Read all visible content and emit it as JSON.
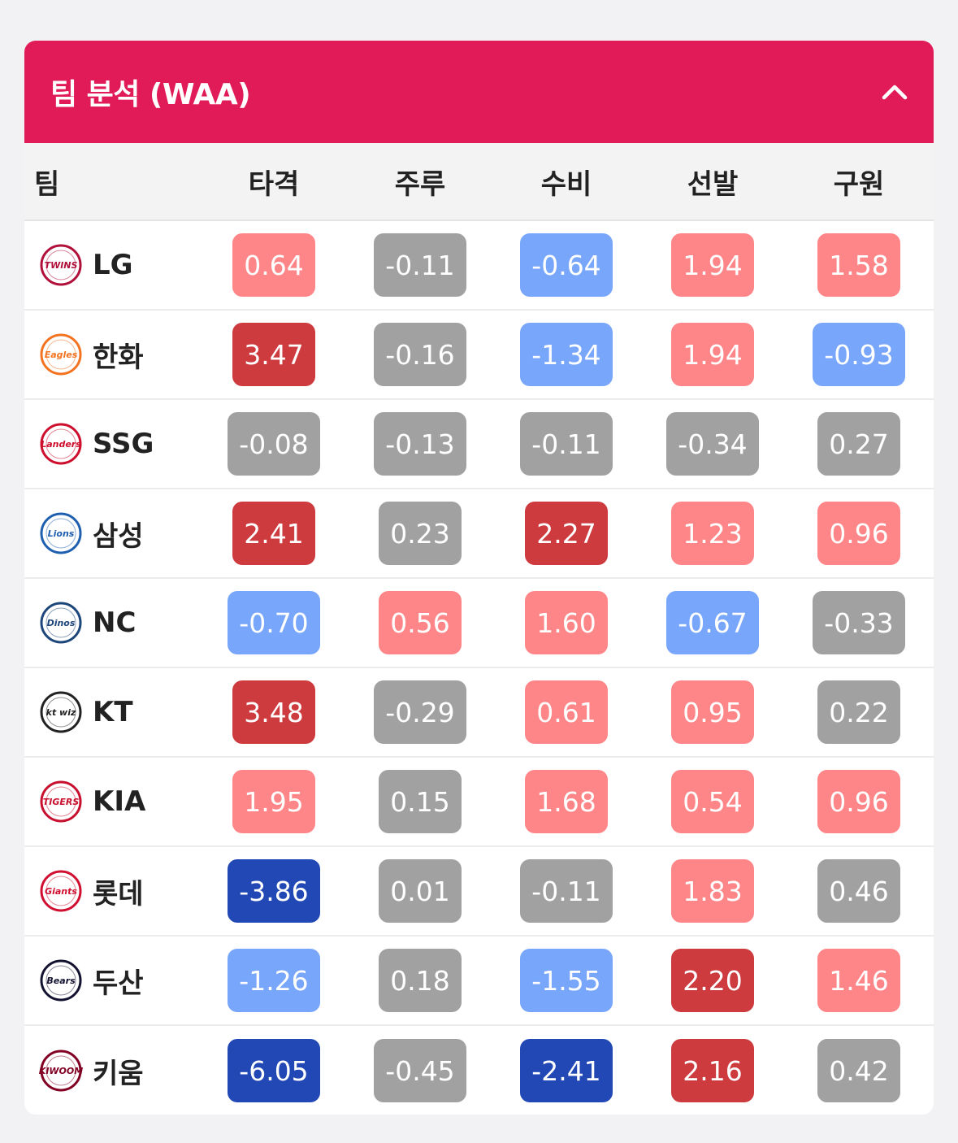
{
  "header": {
    "title": "팀 분석 (WAA)"
  },
  "columns": {
    "team": "팀",
    "stats": [
      "타격",
      "주루",
      "수비",
      "선발",
      "구원"
    ]
  },
  "colors": {
    "header_bg": "#e11a58",
    "gray": "#a1a1a1",
    "pink": "#ff8688",
    "red": "#cd3b3f",
    "light_blue": "#78a6fb",
    "dark_blue": "#2148b4"
  },
  "teams": [
    {
      "name": "LG",
      "logo_text": "TWINS",
      "logo_color": "#b0103a",
      "logo": "lg-twins-logo-icon",
      "values": [
        {
          "v": "0.64",
          "c": "pink"
        },
        {
          "v": "-0.11",
          "c": "gray"
        },
        {
          "v": "-0.64",
          "c": "light_blue"
        },
        {
          "v": "1.94",
          "c": "pink"
        },
        {
          "v": "1.58",
          "c": "pink"
        }
      ]
    },
    {
      "name": "한화",
      "logo_text": "Eagles",
      "logo_color": "#f37321",
      "logo": "hanwha-eagles-logo-icon",
      "values": [
        {
          "v": "3.47",
          "c": "red"
        },
        {
          "v": "-0.16",
          "c": "gray"
        },
        {
          "v": "-1.34",
          "c": "light_blue"
        },
        {
          "v": "1.94",
          "c": "pink"
        },
        {
          "v": "-0.93",
          "c": "light_blue"
        }
      ]
    },
    {
      "name": "SSG",
      "logo_text": "Landers",
      "logo_color": "#ce0e2d",
      "logo": "ssg-landers-logo-icon",
      "values": [
        {
          "v": "-0.08",
          "c": "gray"
        },
        {
          "v": "-0.13",
          "c": "gray"
        },
        {
          "v": "-0.11",
          "c": "gray"
        },
        {
          "v": "-0.34",
          "c": "gray"
        },
        {
          "v": "0.27",
          "c": "gray"
        }
      ]
    },
    {
      "name": "삼성",
      "logo_text": "Lions",
      "logo_color": "#1f5fb0",
      "logo": "samsung-lions-logo-icon",
      "values": [
        {
          "v": "2.41",
          "c": "red"
        },
        {
          "v": "0.23",
          "c": "gray"
        },
        {
          "v": "2.27",
          "c": "red"
        },
        {
          "v": "1.23",
          "c": "pink"
        },
        {
          "v": "0.96",
          "c": "pink"
        }
      ]
    },
    {
      "name": "NC",
      "logo_text": "Dinos",
      "logo_color": "#1d467a",
      "logo": "nc-dinos-logo-icon",
      "values": [
        {
          "v": "-0.70",
          "c": "light_blue"
        },
        {
          "v": "0.56",
          "c": "pink"
        },
        {
          "v": "1.60",
          "c": "pink"
        },
        {
          "v": "-0.67",
          "c": "light_blue"
        },
        {
          "v": "-0.33",
          "c": "gray"
        }
      ]
    },
    {
      "name": "KT",
      "logo_text": "kt wiz",
      "logo_color": "#222222",
      "logo": "kt-wiz-logo-icon",
      "values": [
        {
          "v": "3.48",
          "c": "red"
        },
        {
          "v": "-0.29",
          "c": "gray"
        },
        {
          "v": "0.61",
          "c": "pink"
        },
        {
          "v": "0.95",
          "c": "pink"
        },
        {
          "v": "0.22",
          "c": "gray"
        }
      ]
    },
    {
      "name": "KIA",
      "logo_text": "TIGERS",
      "logo_color": "#c8102e",
      "logo": "kia-tigers-logo-icon",
      "values": [
        {
          "v": "1.95",
          "c": "pink"
        },
        {
          "v": "0.15",
          "c": "gray"
        },
        {
          "v": "1.68",
          "c": "pink"
        },
        {
          "v": "0.54",
          "c": "pink"
        },
        {
          "v": "0.96",
          "c": "pink"
        }
      ]
    },
    {
      "name": "롯데",
      "logo_text": "Giants",
      "logo_color": "#d00f31",
      "logo": "lotte-giants-logo-icon",
      "values": [
        {
          "v": "-3.86",
          "c": "dark_blue"
        },
        {
          "v": "0.01",
          "c": "gray"
        },
        {
          "v": "-0.11",
          "c": "gray"
        },
        {
          "v": "1.83",
          "c": "pink"
        },
        {
          "v": "0.46",
          "c": "gray"
        }
      ]
    },
    {
      "name": "두산",
      "logo_text": "Bears",
      "logo_color": "#131230",
      "logo": "doosan-bears-logo-icon",
      "values": [
        {
          "v": "-1.26",
          "c": "light_blue"
        },
        {
          "v": "0.18",
          "c": "gray"
        },
        {
          "v": "-1.55",
          "c": "light_blue"
        },
        {
          "v": "2.20",
          "c": "red"
        },
        {
          "v": "1.46",
          "c": "pink"
        }
      ]
    },
    {
      "name": "키움",
      "logo_text": "KIWOOM",
      "logo_color": "#820024",
      "logo": "kiwoom-heroes-logo-icon",
      "values": [
        {
          "v": "-6.05",
          "c": "dark_blue"
        },
        {
          "v": "-0.45",
          "c": "gray"
        },
        {
          "v": "-2.41",
          "c": "dark_blue"
        },
        {
          "v": "2.16",
          "c": "red"
        },
        {
          "v": "0.42",
          "c": "gray"
        }
      ]
    }
  ]
}
